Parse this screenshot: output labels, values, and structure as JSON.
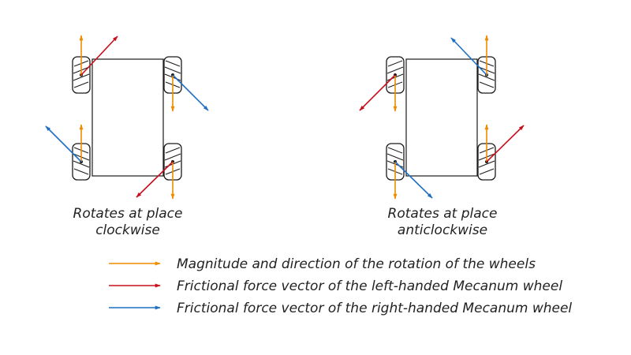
{
  "colors": {
    "rotation": "#f08a00",
    "left_handed": "#c8101c",
    "right_handed": "#1f6fc4",
    "line": "#1a1a1a",
    "text": "#222222"
  },
  "captions": {
    "clockwise": {
      "line1": "Rotates at place",
      "line2": "clockwise"
    },
    "anticlockwise": {
      "line1": "Rotates at place",
      "line2": "anticlockwise"
    }
  },
  "legend": {
    "rotation": "Magnitude and direction of the rotation of the wheels",
    "left_handed": "Frictional force vector of the left-handed Mecanum wheel",
    "right_handed": "Frictional force vector of the right-handed Mecanum wheel"
  }
}
